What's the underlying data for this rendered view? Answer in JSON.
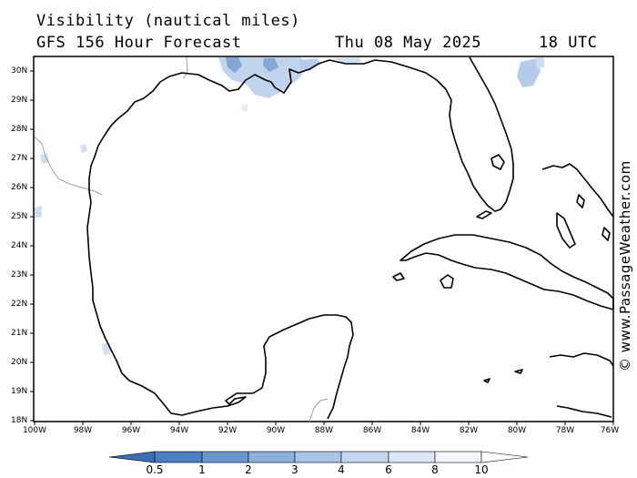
{
  "header": {
    "line1": "Visibility (nautical miles)",
    "line2": "GFS 156 Hour Forecast",
    "date": "Thu 08 May 2025",
    "time": "18 UTC"
  },
  "credit": "© www.PassageWeather.com",
  "map": {
    "region": "Gulf of Mexico",
    "lat_labels": [
      "30N",
      "29N",
      "28N",
      "27N",
      "26N",
      "25N",
      "24N",
      "23N",
      "22N",
      "21N",
      "20N",
      "19N",
      "18N"
    ],
    "lon_labels": [
      "100W",
      "98W",
      "96W",
      "94W",
      "92W",
      "90W",
      "88W",
      "86W",
      "84W",
      "82W",
      "80W",
      "78W",
      "76W"
    ],
    "coastline_color": "#000000",
    "border_color": "#a0a0a0"
  },
  "colorbar": {
    "labels": [
      "0.5",
      "1",
      "2",
      "3",
      "4",
      "6",
      "8",
      "10"
    ],
    "colors": [
      "#3d6eb4",
      "#4a7fc4",
      "#6a96d0",
      "#8cb0dc",
      "#a9c4e6",
      "#c4d7ef",
      "#dde8f6",
      "#f4f8fd",
      "#ffffff"
    ]
  }
}
